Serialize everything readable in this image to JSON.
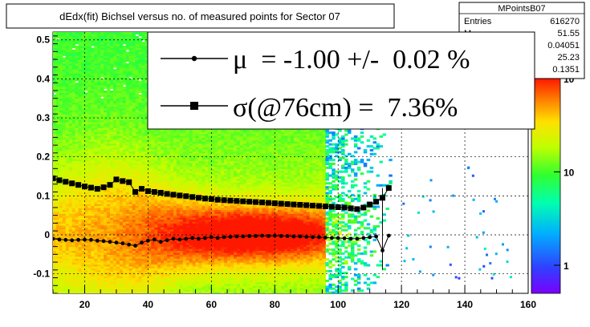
{
  "chart_data": {
    "type": "heatmap",
    "title": "dEdx(fit) Bichsel versus no. of measured points for Sector 07",
    "xlabel": "",
    "ylabel": "",
    "xlim": [
      10,
      160
    ],
    "ylim": [
      -0.15,
      0.52
    ],
    "x_ticks": [
      20,
      40,
      60,
      80,
      100,
      120,
      140,
      160
    ],
    "y_ticks": [
      -0.1,
      0,
      0.1,
      0.2,
      0.3,
      0.4,
      0.5
    ],
    "grid": true,
    "z_scale": "log",
    "z_range": [
      0.5,
      100
    ],
    "z_ticks": [
      {
        "value": 100,
        "label": "10",
        "exp": "2"
      },
      {
        "value": 10,
        "label": "10",
        "exp": ""
      },
      {
        "value": 1,
        "label": "1",
        "exp": ""
      }
    ],
    "stats_box": {
      "name": "MPointsB07",
      "rows": [
        {
          "label": "Entries",
          "value": "616270"
        },
        {
          "label": "M",
          "value": "51.55"
        },
        {
          "label": "",
          "value": "0.04051"
        },
        {
          "label": "",
          "value": "25.23"
        },
        {
          "label": "",
          "value": "0.1351"
        }
      ]
    },
    "legend": {
      "placement": "top-right",
      "entries": [
        {
          "marker": "circle",
          "text": "μ  = -1.00 +/-  0.02 %"
        },
        {
          "marker": "square",
          "text": "σ(@76cm) =  7.36%"
        }
      ]
    },
    "series": [
      {
        "name": "mu",
        "marker": "circle",
        "x": [
          10,
          12,
          14,
          16,
          18,
          20,
          22,
          24,
          26,
          28,
          30,
          32,
          34,
          36,
          38,
          40,
          42,
          44,
          46,
          48,
          50,
          52,
          54,
          56,
          58,
          60,
          62,
          64,
          66,
          68,
          70,
          72,
          74,
          76,
          78,
          80,
          82,
          84,
          86,
          88,
          90,
          92,
          94,
          96,
          98,
          100,
          102,
          104,
          106,
          108,
          110,
          112,
          114,
          116
        ],
        "y": [
          -0.01,
          -0.012,
          -0.013,
          -0.014,
          -0.013,
          -0.012,
          -0.013,
          -0.015,
          -0.016,
          -0.018,
          -0.02,
          -0.022,
          -0.025,
          -0.028,
          -0.02,
          -0.015,
          -0.012,
          -0.018,
          -0.014,
          -0.01,
          -0.012,
          -0.01,
          -0.008,
          -0.01,
          -0.008,
          -0.006,
          -0.008,
          -0.006,
          -0.005,
          -0.004,
          -0.004,
          -0.003,
          -0.003,
          -0.002,
          -0.003,
          -0.002,
          -0.003,
          -0.003,
          -0.004,
          -0.004,
          -0.005,
          -0.006,
          -0.006,
          -0.007,
          -0.008,
          -0.008,
          -0.009,
          -0.01,
          -0.01,
          -0.008,
          -0.006,
          -0.004,
          -0.04,
          -0.002
        ]
      },
      {
        "name": "sigma",
        "marker": "square",
        "x": [
          10,
          12,
          14,
          16,
          18,
          20,
          22,
          24,
          26,
          28,
          30,
          32,
          34,
          36,
          38,
          40,
          42,
          44,
          46,
          48,
          50,
          52,
          54,
          56,
          58,
          60,
          62,
          64,
          66,
          68,
          70,
          72,
          74,
          76,
          78,
          80,
          82,
          84,
          86,
          88,
          90,
          92,
          94,
          96,
          98,
          100,
          102,
          104,
          106,
          108,
          110,
          112,
          114,
          116
        ],
        "y": [
          0.145,
          0.14,
          0.136,
          0.132,
          0.128,
          0.124,
          0.121,
          0.118,
          0.122,
          0.128,
          0.142,
          0.138,
          0.135,
          0.11,
          0.118,
          0.112,
          0.11,
          0.108,
          0.105,
          0.103,
          0.101,
          0.099,
          0.097,
          0.095,
          0.093,
          0.092,
          0.09,
          0.089,
          0.088,
          0.087,
          0.086,
          0.085,
          0.084,
          0.083,
          0.082,
          0.081,
          0.08,
          0.079,
          0.078,
          0.077,
          0.076,
          0.075,
          0.074,
          0.073,
          0.072,
          0.071,
          0.07,
          0.068,
          0.066,
          0.07,
          0.078,
          0.085,
          0.095,
          0.12
        ]
      }
    ]
  },
  "colors": {
    "high": "#ff2000",
    "mid": "#ffff00",
    "low": "#00c8ff",
    "min": "#8800ff",
    "grid": "#000000"
  }
}
